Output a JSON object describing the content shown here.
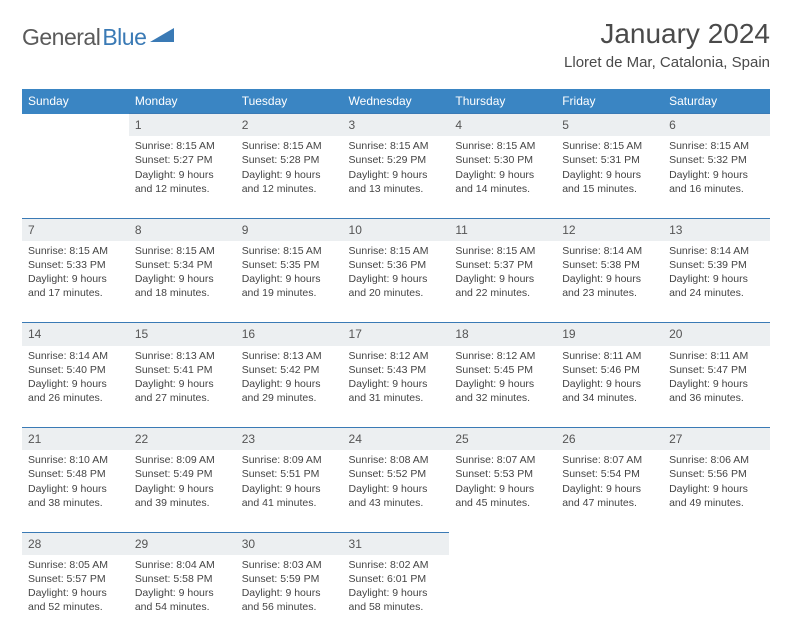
{
  "logo": {
    "part1": "General",
    "part2": "Blue"
  },
  "title": "January 2024",
  "location": "Lloret de Mar, Catalonia, Spain",
  "colors": {
    "header_bg": "#3a85c3",
    "header_text": "#ffffff",
    "daynum_bg": "#eceff1",
    "daynum_border": "#3a7ab5",
    "text": "#444444",
    "logo_gray": "#5a5a5a",
    "logo_blue": "#3a7ab5"
  },
  "weekdays": [
    "Sunday",
    "Monday",
    "Tuesday",
    "Wednesday",
    "Thursday",
    "Friday",
    "Saturday"
  ],
  "weeks": [
    [
      null,
      {
        "n": "1",
        "sr": "8:15 AM",
        "ss": "5:27 PM",
        "d1": "9 hours",
        "d2": "and 12 minutes."
      },
      {
        "n": "2",
        "sr": "8:15 AM",
        "ss": "5:28 PM",
        "d1": "9 hours",
        "d2": "and 12 minutes."
      },
      {
        "n": "3",
        "sr": "8:15 AM",
        "ss": "5:29 PM",
        "d1": "9 hours",
        "d2": "and 13 minutes."
      },
      {
        "n": "4",
        "sr": "8:15 AM",
        "ss": "5:30 PM",
        "d1": "9 hours",
        "d2": "and 14 minutes."
      },
      {
        "n": "5",
        "sr": "8:15 AM",
        "ss": "5:31 PM",
        "d1": "9 hours",
        "d2": "and 15 minutes."
      },
      {
        "n": "6",
        "sr": "8:15 AM",
        "ss": "5:32 PM",
        "d1": "9 hours",
        "d2": "and 16 minutes."
      }
    ],
    [
      {
        "n": "7",
        "sr": "8:15 AM",
        "ss": "5:33 PM",
        "d1": "9 hours",
        "d2": "and 17 minutes."
      },
      {
        "n": "8",
        "sr": "8:15 AM",
        "ss": "5:34 PM",
        "d1": "9 hours",
        "d2": "and 18 minutes."
      },
      {
        "n": "9",
        "sr": "8:15 AM",
        "ss": "5:35 PM",
        "d1": "9 hours",
        "d2": "and 19 minutes."
      },
      {
        "n": "10",
        "sr": "8:15 AM",
        "ss": "5:36 PM",
        "d1": "9 hours",
        "d2": "and 20 minutes."
      },
      {
        "n": "11",
        "sr": "8:15 AM",
        "ss": "5:37 PM",
        "d1": "9 hours",
        "d2": "and 22 minutes."
      },
      {
        "n": "12",
        "sr": "8:14 AM",
        "ss": "5:38 PM",
        "d1": "9 hours",
        "d2": "and 23 minutes."
      },
      {
        "n": "13",
        "sr": "8:14 AM",
        "ss": "5:39 PM",
        "d1": "9 hours",
        "d2": "and 24 minutes."
      }
    ],
    [
      {
        "n": "14",
        "sr": "8:14 AM",
        "ss": "5:40 PM",
        "d1": "9 hours",
        "d2": "and 26 minutes."
      },
      {
        "n": "15",
        "sr": "8:13 AM",
        "ss": "5:41 PM",
        "d1": "9 hours",
        "d2": "and 27 minutes."
      },
      {
        "n": "16",
        "sr": "8:13 AM",
        "ss": "5:42 PM",
        "d1": "9 hours",
        "d2": "and 29 minutes."
      },
      {
        "n": "17",
        "sr": "8:12 AM",
        "ss": "5:43 PM",
        "d1": "9 hours",
        "d2": "and 31 minutes."
      },
      {
        "n": "18",
        "sr": "8:12 AM",
        "ss": "5:45 PM",
        "d1": "9 hours",
        "d2": "and 32 minutes."
      },
      {
        "n": "19",
        "sr": "8:11 AM",
        "ss": "5:46 PM",
        "d1": "9 hours",
        "d2": "and 34 minutes."
      },
      {
        "n": "20",
        "sr": "8:11 AM",
        "ss": "5:47 PM",
        "d1": "9 hours",
        "d2": "and 36 minutes."
      }
    ],
    [
      {
        "n": "21",
        "sr": "8:10 AM",
        "ss": "5:48 PM",
        "d1": "9 hours",
        "d2": "and 38 minutes."
      },
      {
        "n": "22",
        "sr": "8:09 AM",
        "ss": "5:49 PM",
        "d1": "9 hours",
        "d2": "and 39 minutes."
      },
      {
        "n": "23",
        "sr": "8:09 AM",
        "ss": "5:51 PM",
        "d1": "9 hours",
        "d2": "and 41 minutes."
      },
      {
        "n": "24",
        "sr": "8:08 AM",
        "ss": "5:52 PM",
        "d1": "9 hours",
        "d2": "and 43 minutes."
      },
      {
        "n": "25",
        "sr": "8:07 AM",
        "ss": "5:53 PM",
        "d1": "9 hours",
        "d2": "and 45 minutes."
      },
      {
        "n": "26",
        "sr": "8:07 AM",
        "ss": "5:54 PM",
        "d1": "9 hours",
        "d2": "and 47 minutes."
      },
      {
        "n": "27",
        "sr": "8:06 AM",
        "ss": "5:56 PM",
        "d1": "9 hours",
        "d2": "and 49 minutes."
      }
    ],
    [
      {
        "n": "28",
        "sr": "8:05 AM",
        "ss": "5:57 PM",
        "d1": "9 hours",
        "d2": "and 52 minutes."
      },
      {
        "n": "29",
        "sr": "8:04 AM",
        "ss": "5:58 PM",
        "d1": "9 hours",
        "d2": "and 54 minutes."
      },
      {
        "n": "30",
        "sr": "8:03 AM",
        "ss": "5:59 PM",
        "d1": "9 hours",
        "d2": "and 56 minutes."
      },
      {
        "n": "31",
        "sr": "8:02 AM",
        "ss": "6:01 PM",
        "d1": "9 hours",
        "d2": "and 58 minutes."
      },
      null,
      null,
      null
    ]
  ]
}
